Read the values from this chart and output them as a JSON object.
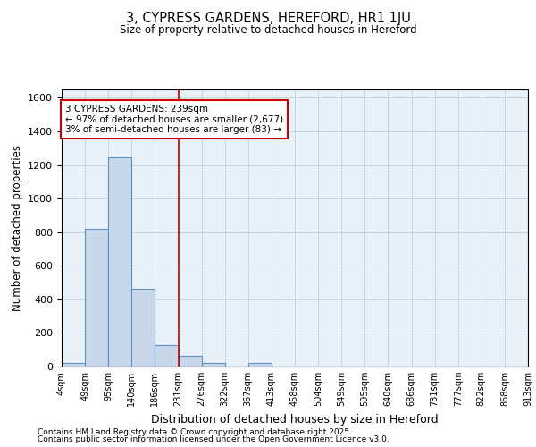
{
  "title": "3, CYPRESS GARDENS, HEREFORD, HR1 1JU",
  "subtitle": "Size of property relative to detached houses in Hereford",
  "xlabel": "Distribution of detached houses by size in Hereford",
  "ylabel": "Number of detached properties",
  "footer1": "Contains HM Land Registry data © Crown copyright and database right 2025.",
  "footer2": "Contains public sector information licensed under the Open Government Licence v3.0.",
  "bin_labels": [
    "4sqm",
    "49sqm",
    "95sqm",
    "140sqm",
    "186sqm",
    "231sqm",
    "276sqm",
    "322sqm",
    "367sqm",
    "413sqm",
    "458sqm",
    "504sqm",
    "549sqm",
    "595sqm",
    "640sqm",
    "686sqm",
    "731sqm",
    "777sqm",
    "822sqm",
    "868sqm",
    "913sqm"
  ],
  "bar_values": [
    20,
    820,
    1245,
    465,
    130,
    65,
    22,
    0,
    22,
    0,
    0,
    0,
    0,
    0,
    0,
    0,
    0,
    0,
    0,
    0
  ],
  "bar_color": "#c8d8ea",
  "bar_edge_color": "#6090c0",
  "grid_color": "#c8d4e0",
  "bg_color": "#e8f0f8",
  "red_line_bin": 5,
  "annotation_line1": "3 CYPRESS GARDENS: 239sqm",
  "annotation_line2": "← 97% of detached houses are smaller (2,677)",
  "annotation_line3": "3% of semi-detached houses are larger (83) →",
  "ylim": [
    0,
    1650
  ],
  "yticks": [
    0,
    200,
    400,
    600,
    800,
    1000,
    1200,
    1400,
    1600
  ]
}
